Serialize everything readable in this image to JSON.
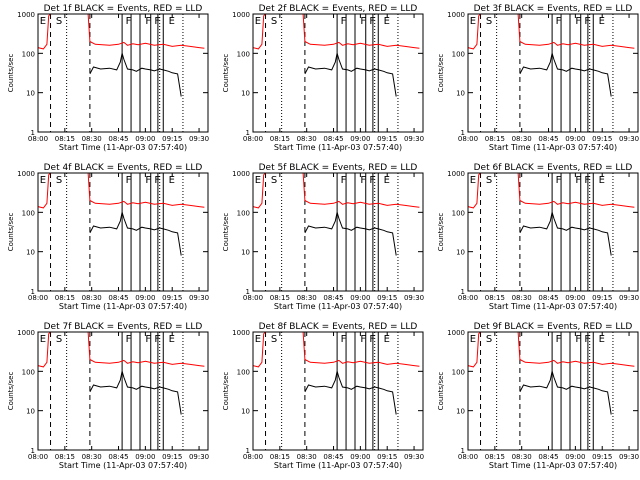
{
  "chart_data": [
    {
      "type": "line",
      "title": "Det 1f BLACK = Events, RED = LLD",
      "xlabel": "Start Time (11-Apr-03 07:57:40)",
      "ylabel": "Counts/sec"
    },
    {
      "type": "line",
      "title": "Det 2f BLACK = Events, RED = LLD",
      "xlabel": "Start Time (11-Apr-03 07:57:40)",
      "ylabel": "Counts/sec"
    },
    {
      "type": "line",
      "title": "Det 3f BLACK = Events, RED = LLD",
      "xlabel": "Start Time (11-Apr-03 07:57:40)",
      "ylabel": "Counts/sec"
    },
    {
      "type": "line",
      "title": "Det 4f BLACK = Events, RED = LLD",
      "xlabel": "Start Time (11-Apr-03 07:57:40)",
      "ylabel": "Counts/sec"
    },
    {
      "type": "line",
      "title": "Det 5f BLACK = Events, RED = LLD",
      "xlabel": "Start Time (11-Apr-03 07:57:40)",
      "ylabel": "Counts/sec"
    },
    {
      "type": "line",
      "title": "Det 6f BLACK = Events, RED = LLD",
      "xlabel": "Start Time (11-Apr-03 07:57:40)",
      "ylabel": "Counts/sec"
    },
    {
      "type": "line",
      "title": "Det 7f BLACK = Events, RED = LLD",
      "xlabel": "Start Time (11-Apr-03 07:57:40)",
      "ylabel": "Counts/sec"
    },
    {
      "type": "line",
      "title": "Det 8f BLACK = Events, RED = LLD",
      "xlabel": "Start Time (11-Apr-03 07:57:40)",
      "ylabel": "Counts/sec"
    },
    {
      "type": "line",
      "title": "Det 9f BLACK = Events, RED = LLD",
      "xlabel": "Start Time (11-Apr-03 07:57:40)",
      "ylabel": "Counts/sec"
    }
  ],
  "shared": {
    "x_ticks": [
      "08:00",
      "08:15",
      "08:30",
      "08:45",
      "09:00",
      "09:15",
      "09:30"
    ],
    "x_tick_minutes": [
      480,
      495,
      510,
      525,
      540,
      555,
      570
    ],
    "xlim_minutes": [
      480,
      575
    ],
    "y_ticks": [
      "1",
      "10",
      "100",
      "1000"
    ],
    "y_tick_values": [
      1,
      10,
      100,
      1000
    ],
    "ylim": [
      1,
      1000
    ],
    "y_scale": "log",
    "flags": [
      "E",
      "S",
      "F",
      "F",
      "F",
      "E"
    ],
    "flag_minutes": [
      481,
      490,
      529,
      540,
      545,
      553
    ],
    "dashed_minutes": [
      487,
      509
    ],
    "dotted_minutes": [
      496,
      548,
      561
    ],
    "solid_minutes": [
      527,
      532,
      537,
      543,
      547,
      550
    ],
    "series_colors": {
      "events": "#000000",
      "lld": "#ff0000"
    },
    "lld_series": {
      "minutes": [
        480,
        483,
        485,
        486,
        487,
        488,
        495,
        507,
        508,
        509,
        512,
        520,
        525,
        528,
        530,
        533,
        536,
        540,
        545,
        550,
        555,
        560,
        565,
        570,
        573
      ],
      "values": [
        140,
        130,
        170,
        900,
        1000,
        1000,
        1000,
        1000,
        1000,
        200,
        170,
        160,
        170,
        190,
        160,
        175,
        165,
        180,
        160,
        170,
        150,
        160,
        150,
        140,
        135
      ]
    },
    "events_series": {
      "minutes": [
        509,
        511,
        515,
        520,
        524,
        526,
        527,
        528,
        530,
        533,
        535,
        538,
        540,
        543,
        545,
        548,
        550,
        553,
        555,
        558,
        560
      ],
      "values": [
        30,
        45,
        40,
        42,
        38,
        60,
        100,
        70,
        40,
        38,
        35,
        42,
        40,
        38,
        36,
        40,
        38,
        35,
        32,
        30,
        8
      ]
    }
  }
}
